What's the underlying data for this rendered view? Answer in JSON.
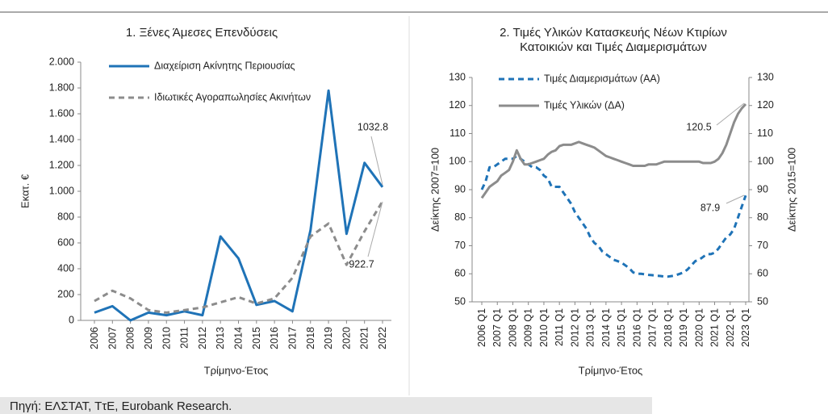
{
  "source": "Πηγή: ΕΛΣΤΑΤ, ΤτΕ, Eurobank Research.",
  "chart_data": [
    {
      "type": "line",
      "title": [
        "1. Ξένες Άμεσες Επενδύσεις"
      ],
      "ylabel": "Εκατ. €",
      "xlabel": "Τρίμηνο-Έτος",
      "categories": [
        "2006",
        "2007",
        "2008",
        "2009",
        "2010",
        "2011",
        "2012",
        "2013",
        "2014",
        "2015",
        "2016",
        "2017",
        "2018",
        "2019",
        "2020",
        "2021",
        "2022"
      ],
      "series": [
        {
          "name": "Διαχείριση Ακίνητης Περιουσίας",
          "color": "#1f73b7",
          "style": "solid",
          "values": [
            60,
            110,
            0,
            60,
            40,
            70,
            40,
            650,
            480,
            120,
            150,
            70,
            700,
            1780,
            670,
            1220,
            1032.8
          ]
        },
        {
          "name": "Ιδιωτικές Αγοραπωλησίες Ακινήτων",
          "color": "#8c8c8c",
          "style": "dashed",
          "values": [
            150,
            230,
            170,
            80,
            60,
            80,
            100,
            140,
            180,
            130,
            170,
            330,
            650,
            750,
            430,
            690,
            922.7
          ]
        }
      ],
      "ylim": [
        0,
        2000
      ],
      "yticks": [
        0,
        200,
        400,
        600,
        800,
        {
          "value": 1000,
          "label": "1.000"
        },
        {
          "value": 1200,
          "label": "1.200"
        },
        {
          "value": 1400,
          "label": "1.400"
        },
        {
          "value": 1600,
          "label": "1.600"
        },
        {
          "value": 1800,
          "label": "1.800"
        },
        {
          "value": 2000,
          "label": "2.000"
        }
      ],
      "annotations": [
        "1032.8",
        "922.7"
      ]
    },
    {
      "type": "line",
      "title": [
        "2. Τιμές Υλικών Κατασκευής Νέων Κτιρίων",
        "Κατοικιών και Τιμές Διαμερισμάτων"
      ],
      "ylabel": "Δείκτης 2007=100",
      "y2label": "Δείκτης 2015=100",
      "xlabel": "Τρίμηνο-Έτος",
      "categories": [
        "2006 Q1",
        null,
        null,
        null,
        "2007 Q1",
        null,
        null,
        null,
        "2008 Q1",
        null,
        null,
        null,
        "2009 Q1",
        null,
        null,
        null,
        "2010 Q1",
        null,
        null,
        null,
        "2011 Q1",
        null,
        null,
        null,
        "2012 Q1",
        null,
        null,
        null,
        "2013 Q1",
        null,
        null,
        null,
        "2014 Q1",
        null,
        null,
        null,
        "2015 Q1",
        null,
        null,
        null,
        "2016 Q1",
        null,
        null,
        null,
        "2017 Q1",
        null,
        null,
        null,
        "2018 Q1",
        null,
        null,
        null,
        "2019 Q1",
        null,
        null,
        null,
        "2020 Q1",
        null,
        null,
        null,
        "2021 Q1",
        null,
        null,
        null,
        "2022 Q1",
        null,
        null,
        null,
        "2023 Q1"
      ],
      "series": [
        {
          "name": "Τιμές Διαμερισμάτων (ΑΑ)",
          "color": "#1f73b7",
          "style": "dashed",
          "axis": "y",
          "values": [
            90,
            93,
            98,
            98,
            99,
            100,
            101,
            101,
            101,
            102,
            101,
            100,
            99,
            98,
            98,
            97,
            95,
            94,
            91,
            91,
            91,
            89,
            87,
            85,
            82,
            80,
            78,
            76,
            73,
            71,
            70,
            68,
            67,
            66,
            65,
            64.5,
            64,
            63,
            62,
            60.5,
            60,
            60,
            59.8,
            59.6,
            59.5,
            59.3,
            59.2,
            59,
            59,
            59.2,
            59.5,
            60,
            60.5,
            61.5,
            63,
            64.5,
            65,
            66,
            67,
            67,
            67.5,
            69,
            71,
            73,
            74,
            76,
            80,
            84,
            87.9
          ]
        },
        {
          "name": "Τιμές Υλικών (ΔΑ)",
          "color": "#8c8c8c",
          "style": "solid",
          "axis": "y2",
          "values": [
            87,
            89,
            91,
            92,
            93,
            95,
            96,
            97,
            100,
            104,
            101,
            99,
            99,
            99.5,
            100,
            100.5,
            101,
            102.5,
            103.5,
            104,
            105.5,
            106,
            106,
            106,
            106.5,
            107,
            106.5,
            106,
            105.5,
            105,
            104,
            103,
            102,
            101.5,
            101,
            100.5,
            100,
            99.5,
            99,
            98.5,
            98.5,
            98.5,
            98.5,
            99,
            99,
            99,
            99.5,
            100,
            100,
            100,
            100,
            100,
            100,
            100,
            100,
            100,
            100,
            99.5,
            99.5,
            99.5,
            100,
            101,
            103,
            106,
            110,
            114,
            117,
            119,
            120.5
          ]
        }
      ],
      "ylim": [
        50,
        130
      ],
      "yticks": [
        50,
        60,
        70,
        80,
        90,
        100,
        110,
        120,
        130
      ],
      "y2lim": [
        50,
        130
      ],
      "y2ticks": [
        50,
        60,
        70,
        80,
        90,
        100,
        110,
        120,
        130
      ],
      "annotations": [
        "120.5",
        "87.9"
      ]
    }
  ]
}
